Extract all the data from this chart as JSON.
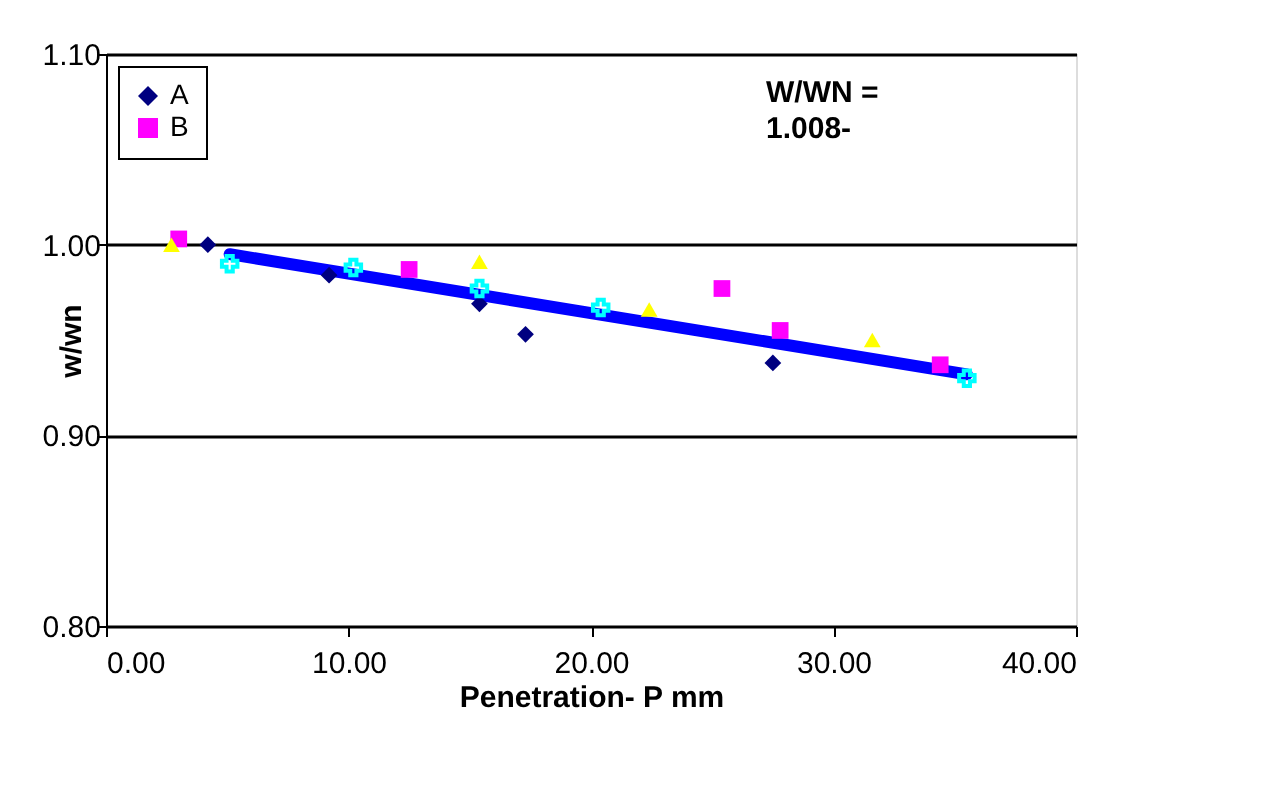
{
  "chart_data": {
    "type": "scatter",
    "xlabel": "Penetration- P mm",
    "ylabel": "w/wn",
    "xlim": [
      0,
      40
    ],
    "xticks": [
      {
        "value": 0,
        "label": "0.00"
      },
      {
        "value": 10,
        "label": "10.00"
      },
      {
        "value": 20,
        "label": "20.00"
      },
      {
        "value": 30,
        "label": "30.00"
      },
      {
        "value": 40,
        "label": "40.00"
      }
    ],
    "ylim": [
      0.8,
      1.1
    ],
    "yticks": [
      {
        "value": 0.8,
        "label": "0.80"
      },
      {
        "value": 0.9,
        "label": "0.90"
      },
      {
        "value": 1.0,
        "label": "1.00"
      },
      {
        "value": 1.1,
        "label": "1.10"
      }
    ],
    "grid": "y",
    "legend": "top left",
    "annotations": [
      "W/WN =",
      "1.008-"
    ],
    "series": [
      {
        "name": "A",
        "color": "#000080",
        "marker": "diamond",
        "x": [
          4.2,
          9.2,
          15.4,
          17.3,
          27.5
        ],
        "values": [
          1.0,
          0.984,
          0.969,
          0.953,
          0.938
        ]
      },
      {
        "name": "B",
        "color": "#ff00ff",
        "marker": "square",
        "x": [
          3.0,
          12.5,
          25.4,
          27.8,
          34.4
        ],
        "values": [
          1.003,
          0.987,
          0.977,
          0.955,
          0.937
        ]
      },
      {
        "color": "#ffff00",
        "marker": "triangle",
        "x": [
          2.7,
          15.4,
          22.4,
          31.6
        ],
        "values": [
          1.0,
          0.991,
          0.966,
          0.95
        ]
      },
      {
        "color": "#00ffff",
        "marker": "cross",
        "x": [
          5.1,
          10.2,
          15.4,
          20.4,
          35.5
        ],
        "values": [
          0.99,
          0.988,
          0.977,
          0.967,
          0.93
        ]
      },
      {
        "type": "line",
        "color": "#0000ff",
        "marker": "none",
        "x": [
          5.1,
          35.5
        ],
        "values": [
          0.995,
          0.932
        ]
      }
    ]
  }
}
